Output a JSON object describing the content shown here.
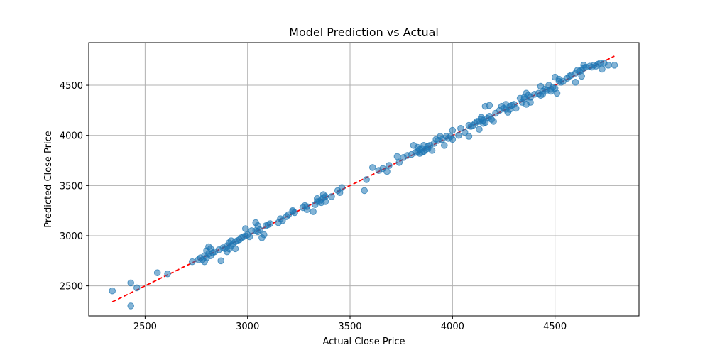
{
  "chart_data": {
    "type": "scatter",
    "title": "Model Prediction vs Actual",
    "xlabel": "Actual Close Price",
    "ylabel": "Predicted Close Price",
    "xlim": [
      2225,
      4910
    ],
    "ylim": [
      2200,
      4925
    ],
    "xticks": [
      2500,
      3000,
      3500,
      4000,
      4500
    ],
    "yticks": [
      2500,
      3000,
      3500,
      4000,
      4500
    ],
    "grid": true,
    "point_color": "#1f77b4",
    "reference_line": {
      "style": "dashed",
      "color": "#ff0000",
      "x": [
        2340,
        4790
      ],
      "y": [
        2340,
        4790
      ]
    },
    "series": [
      {
        "points": [
          [
            2340,
            2450
          ],
          [
            2430,
            2530
          ],
          [
            2430,
            2300
          ],
          [
            2460,
            2480
          ],
          [
            2560,
            2630
          ],
          [
            2610,
            2620
          ],
          [
            2730,
            2740
          ],
          [
            2760,
            2760
          ],
          [
            2770,
            2780
          ],
          [
            2780,
            2760
          ],
          [
            2790,
            2740
          ],
          [
            2790,
            2800
          ],
          [
            2800,
            2780
          ],
          [
            2800,
            2850
          ],
          [
            2810,
            2820
          ],
          [
            2810,
            2890
          ],
          [
            2820,
            2870
          ],
          [
            2820,
            2800
          ],
          [
            2830,
            2830
          ],
          [
            2840,
            2840
          ],
          [
            2860,
            2860
          ],
          [
            2870,
            2750
          ],
          [
            2880,
            2880
          ],
          [
            2890,
            2870
          ],
          [
            2900,
            2840
          ],
          [
            2900,
            2900
          ],
          [
            2910,
            2930
          ],
          [
            2910,
            2870
          ],
          [
            2920,
            2950
          ],
          [
            2920,
            2900
          ],
          [
            2930,
            2920
          ],
          [
            2940,
            2940
          ],
          [
            2940,
            2870
          ],
          [
            2950,
            2950
          ],
          [
            2960,
            2960
          ],
          [
            2970,
            2980
          ],
          [
            2980,
            2990
          ],
          [
            2990,
            3000
          ],
          [
            2990,
            3070
          ],
          [
            3000,
            3010
          ],
          [
            3010,
            2990
          ],
          [
            3020,
            3050
          ],
          [
            3040,
            3050
          ],
          [
            3040,
            3130
          ],
          [
            3050,
            3100
          ],
          [
            3050,
            3040
          ],
          [
            3060,
            3060
          ],
          [
            3070,
            2980
          ],
          [
            3080,
            3010
          ],
          [
            3090,
            3100
          ],
          [
            3100,
            3110
          ],
          [
            3110,
            3120
          ],
          [
            3150,
            3130
          ],
          [
            3160,
            3170
          ],
          [
            3170,
            3150
          ],
          [
            3190,
            3190
          ],
          [
            3200,
            3210
          ],
          [
            3220,
            3240
          ],
          [
            3220,
            3250
          ],
          [
            3230,
            3230
          ],
          [
            3270,
            3280
          ],
          [
            3280,
            3300
          ],
          [
            3290,
            3290
          ],
          [
            3290,
            3260
          ],
          [
            3320,
            3240
          ],
          [
            3330,
            3310
          ],
          [
            3340,
            3340
          ],
          [
            3340,
            3370
          ],
          [
            3350,
            3340
          ],
          [
            3360,
            3360
          ],
          [
            3360,
            3330
          ],
          [
            3370,
            3380
          ],
          [
            3370,
            3410
          ],
          [
            3380,
            3340
          ],
          [
            3380,
            3390
          ],
          [
            3410,
            3390
          ],
          [
            3440,
            3450
          ],
          [
            3450,
            3430
          ],
          [
            3460,
            3480
          ],
          [
            3570,
            3450
          ],
          [
            3580,
            3560
          ],
          [
            3610,
            3680
          ],
          [
            3640,
            3650
          ],
          [
            3660,
            3670
          ],
          [
            3680,
            3640
          ],
          [
            3690,
            3700
          ],
          [
            3730,
            3790
          ],
          [
            3740,
            3730
          ],
          [
            3760,
            3780
          ],
          [
            3780,
            3800
          ],
          [
            3800,
            3810
          ],
          [
            3810,
            3900
          ],
          [
            3820,
            3830
          ],
          [
            3830,
            3840
          ],
          [
            3830,
            3880
          ],
          [
            3840,
            3820
          ],
          [
            3840,
            3860
          ],
          [
            3850,
            3870
          ],
          [
            3850,
            3830
          ],
          [
            3860,
            3900
          ],
          [
            3860,
            3840
          ],
          [
            3870,
            3860
          ],
          [
            3880,
            3870
          ],
          [
            3880,
            3890
          ],
          [
            3890,
            3900
          ],
          [
            3900,
            3850
          ],
          [
            3910,
            3920
          ],
          [
            3920,
            3960
          ],
          [
            3930,
            3950
          ],
          [
            3940,
            3990
          ],
          [
            3950,
            3960
          ],
          [
            3960,
            3900
          ],
          [
            3970,
            3990
          ],
          [
            3980,
            3970
          ],
          [
            3990,
            3990
          ],
          [
            4000,
            3960
          ],
          [
            4000,
            4050
          ],
          [
            4030,
            4000
          ],
          [
            4040,
            4070
          ],
          [
            4060,
            4030
          ],
          [
            4080,
            4100
          ],
          [
            4080,
            3990
          ],
          [
            4090,
            4090
          ],
          [
            4100,
            4100
          ],
          [
            4110,
            4120
          ],
          [
            4120,
            4140
          ],
          [
            4130,
            4140
          ],
          [
            4130,
            4060
          ],
          [
            4140,
            4160
          ],
          [
            4140,
            4180
          ],
          [
            4150,
            4150
          ],
          [
            4150,
            4120
          ],
          [
            4160,
            4130
          ],
          [
            4160,
            4290
          ],
          [
            4170,
            4170
          ],
          [
            4180,
            4190
          ],
          [
            4180,
            4300
          ],
          [
            4190,
            4160
          ],
          [
            4200,
            4140
          ],
          [
            4210,
            4220
          ],
          [
            4230,
            4250
          ],
          [
            4240,
            4290
          ],
          [
            4250,
            4270
          ],
          [
            4260,
            4260
          ],
          [
            4260,
            4310
          ],
          [
            4270,
            4230
          ],
          [
            4280,
            4260
          ],
          [
            4280,
            4290
          ],
          [
            4290,
            4300
          ],
          [
            4300,
            4310
          ],
          [
            4310,
            4270
          ],
          [
            4330,
            4370
          ],
          [
            4340,
            4330
          ],
          [
            4350,
            4360
          ],
          [
            4350,
            4380
          ],
          [
            4360,
            4420
          ],
          [
            4360,
            4310
          ],
          [
            4370,
            4400
          ],
          [
            4380,
            4380
          ],
          [
            4380,
            4330
          ],
          [
            4400,
            4410
          ],
          [
            4420,
            4420
          ],
          [
            4430,
            4400
          ],
          [
            4430,
            4490
          ],
          [
            4440,
            4440
          ],
          [
            4440,
            4410
          ],
          [
            4450,
            4460
          ],
          [
            4460,
            4450
          ],
          [
            4470,
            4500
          ],
          [
            4480,
            4460
          ],
          [
            4480,
            4440
          ],
          [
            4490,
            4480
          ],
          [
            4500,
            4470
          ],
          [
            4500,
            4580
          ],
          [
            4510,
            4420
          ],
          [
            4520,
            4540
          ],
          [
            4520,
            4560
          ],
          [
            4530,
            4530
          ],
          [
            4540,
            4540
          ],
          [
            4560,
            4570
          ],
          [
            4570,
            4590
          ],
          [
            4580,
            4600
          ],
          [
            4600,
            4620
          ],
          [
            4600,
            4530
          ],
          [
            4610,
            4650
          ],
          [
            4620,
            4640
          ],
          [
            4630,
            4650
          ],
          [
            4630,
            4590
          ],
          [
            4640,
            4670
          ],
          [
            4640,
            4700
          ],
          [
            4650,
            4680
          ],
          [
            4670,
            4690
          ],
          [
            4680,
            4680
          ],
          [
            4690,
            4700
          ],
          [
            4700,
            4690
          ],
          [
            4710,
            4710
          ],
          [
            4720,
            4720
          ],
          [
            4730,
            4660
          ],
          [
            4740,
            4720
          ],
          [
            4760,
            4700
          ],
          [
            4790,
            4700
          ]
        ]
      }
    ]
  }
}
